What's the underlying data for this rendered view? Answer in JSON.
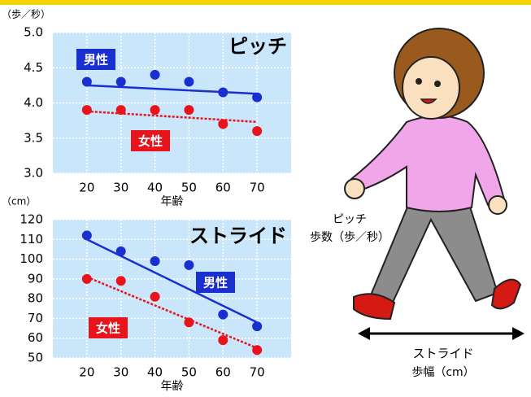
{
  "chart_data": [
    {
      "type": "scatter",
      "title": "ピッチ",
      "y_unit": "（歩／秒）",
      "x_label": "年齢",
      "x": [
        20,
        30,
        40,
        50,
        60,
        70
      ],
      "xlim": [
        10,
        80
      ],
      "xticks": [
        20,
        30,
        40,
        50,
        60,
        70
      ],
      "ylim": [
        3,
        5
      ],
      "yticks": [
        {
          "value": 3,
          "label": "3.0"
        },
        3.5,
        {
          "value": 4,
          "label": "4.0"
        },
        4.5,
        {
          "value": 5,
          "label": "5.0"
        }
      ],
      "grid": true,
      "series": [
        {
          "name": "男性",
          "color": "#1a2fd0",
          "values": [
            4.3,
            4.3,
            4.4,
            4.3,
            4.15,
            4.08
          ],
          "trend": [
            4.25,
            4.13
          ]
        },
        {
          "name": "女性",
          "color": "#e8141c",
          "values": [
            3.9,
            3.9,
            3.9,
            3.9,
            3.7,
            3.6
          ],
          "trend": [
            3.88,
            3.73
          ]
        }
      ]
    },
    {
      "type": "scatter",
      "title": "ストライド",
      "y_unit": "（cm）",
      "x_label": "年齢",
      "x": [
        20,
        30,
        40,
        50,
        60,
        70
      ],
      "xlim": [
        10,
        80
      ],
      "xticks": [
        20,
        30,
        40,
        50,
        60,
        70
      ],
      "ylim": [
        50,
        120
      ],
      "yticks": [
        50,
        60,
        70,
        80,
        90,
        100,
        110,
        120
      ],
      "grid": true,
      "series": [
        {
          "name": "男性",
          "color": "#1a2fd0",
          "values": [
            112,
            104,
            99,
            97,
            72,
            66
          ],
          "trend": [
            110,
            68
          ]
        },
        {
          "name": "女性",
          "color": "#e8141c",
          "values": [
            90,
            89,
            81,
            68,
            59,
            54
          ],
          "trend": [
            91,
            55
          ]
        }
      ]
    }
  ],
  "illustration": {
    "pitch": "ピッチ",
    "pitch_unit": "歩数（歩／秒）",
    "stride": "ストライド",
    "stride_unit": "歩幅（cm）"
  }
}
